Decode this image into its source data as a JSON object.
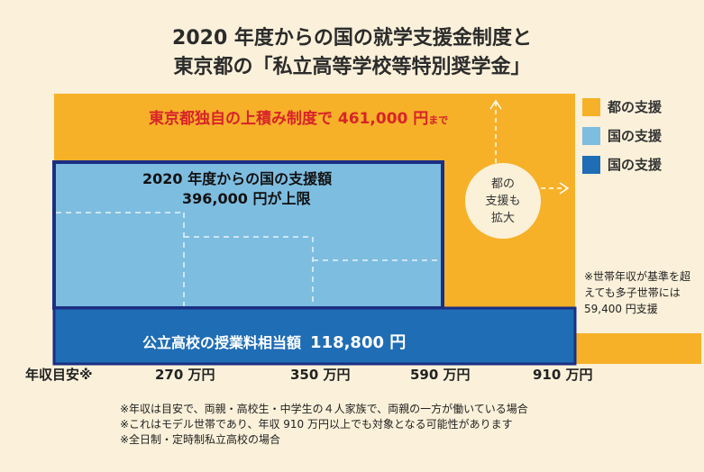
{
  "title": {
    "line1": "2020 年度からの国の就学支援金制度と",
    "line2": "東京都の「私立高等学校等特別奨学金」"
  },
  "labels": {
    "tokyo_main": "東京都独自の上積み制度で 461,000 円",
    "tokyo_suffix": "まで",
    "national_line1": "2020 年度からの国の支援額",
    "national_line2": "396,000 円が上限",
    "public_main": "公立高校の授業料相当額",
    "public_amount": "118,800 円",
    "expand_line1": "都の",
    "expand_line2": "支援も",
    "expand_line3": "拡大"
  },
  "legend": [
    {
      "label": "都の支援",
      "color": "#f6b128"
    },
    {
      "label": "国の支援",
      "color": "#7dbde0"
    },
    {
      "label": "国の支援",
      "color": "#1f6db5"
    }
  ],
  "multi_child_note": "※世帯年収が基準を超えても多子世帯には 59,400 円支援",
  "axis": {
    "prefix": "年収目安※",
    "ticks": [
      "270 万円",
      "350 万円",
      "590 万円",
      "910 万円"
    ]
  },
  "footnotes": [
    "※年収は目安で、両親・高校生・中学生の４人家族で、両親の一方が働いている場合",
    "※これはモデル世帯であり、年収 910 万円以上でも対象となる可能性があります",
    "※全日制・定時制私立高校の場合"
  ],
  "chart_data": {
    "type": "area",
    "title": "2020 年度からの国の就学支援金制度と東京都の「私立高等学校等特別奨学金」",
    "xlabel": "年収目安※",
    "x_ticks": [
      "270 万円",
      "350 万円",
      "590 万円",
      "910 万円"
    ],
    "series": [
      {
        "name": "都の支援",
        "color": "#f6b128",
        "max_total_yen": 461000,
        "note": "東京都独自の上積み制度で 461,000 円まで"
      },
      {
        "name": "国の支援",
        "color": "#7dbde0",
        "max_total_yen": 396000,
        "note": "2020 年度からの国の支援額 396,000 円が上限"
      },
      {
        "name": "国の支援",
        "color": "#1f6db5",
        "base_yen": 118800,
        "note": "公立高校の授業料相当額 118,800 円"
      }
    ],
    "multi_child_support_yen": 59400
  }
}
